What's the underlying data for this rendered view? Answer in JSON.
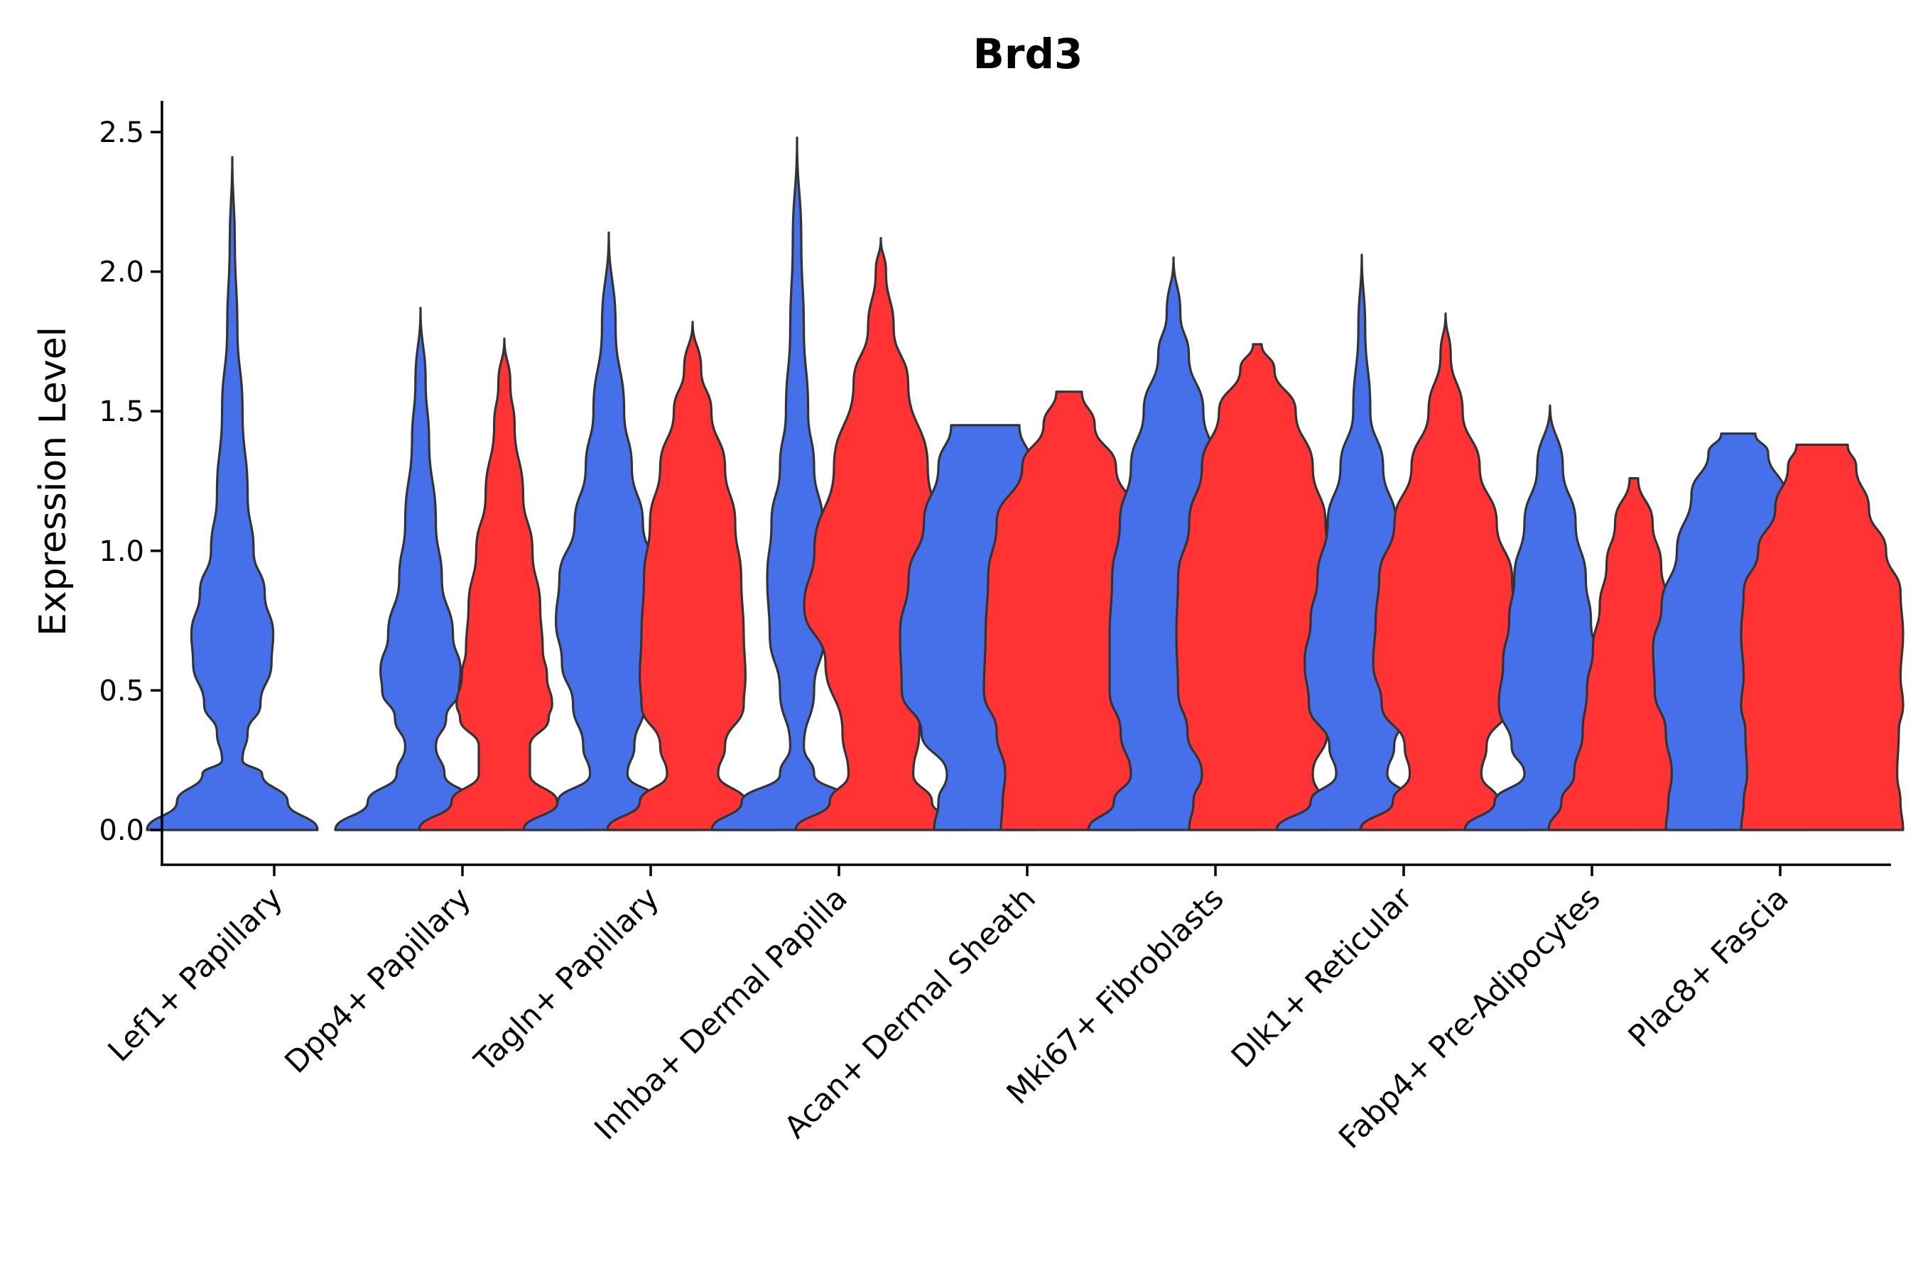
{
  "chart_data": {
    "type": "violin",
    "title": "Brd3",
    "xlabel": "",
    "ylabel": "Expression Level",
    "ylim": [
      -0.12,
      2.6
    ],
    "yticks": [
      0.0,
      0.5,
      1.0,
      1.5,
      2.0,
      2.5
    ],
    "ytick_labels": [
      "0.0",
      "0.5",
      "1.0",
      "1.5",
      "2.0",
      "2.5"
    ],
    "grid": false,
    "legend": "none",
    "colors": {
      "group_1": "#4670EA",
      "group_2": "#FF3333",
      "outline": "#333333"
    },
    "categories": [
      "Lef1+ Papillary",
      "Dpp4+ Papillary",
      "Tagln+ Papillary",
      "Inhba+ Dermal Papilla",
      "Acan+ Dermal Sheath",
      "Mki67+ Fibroblasts",
      "Dlk1+ Reticular",
      "Fabp4+ Pre-Adipocytes",
      "Plac8+ Fascia"
    ],
    "violins": [
      {
        "category": "Lef1+ Papillary",
        "group": "blue",
        "max": 2.41,
        "profile": [
          [
            0,
            1.0
          ],
          [
            0.1,
            0.65
          ],
          [
            0.2,
            0.35
          ],
          [
            0.25,
            0.12
          ],
          [
            0.35,
            0.18
          ],
          [
            0.45,
            0.33
          ],
          [
            0.6,
            0.46
          ],
          [
            0.7,
            0.48
          ],
          [
            0.85,
            0.38
          ],
          [
            1.0,
            0.25
          ],
          [
            1.2,
            0.18
          ],
          [
            1.5,
            0.12
          ],
          [
            1.8,
            0.06
          ],
          [
            2.1,
            0.03
          ],
          [
            2.41,
            0.0
          ]
        ]
      },
      {
        "category": "Dpp4+ Papillary",
        "group": "blue",
        "max": 1.87,
        "profile": [
          [
            0,
            1.0
          ],
          [
            0.1,
            0.62
          ],
          [
            0.2,
            0.28
          ],
          [
            0.3,
            0.18
          ],
          [
            0.4,
            0.3
          ],
          [
            0.5,
            0.45
          ],
          [
            0.57,
            0.47
          ],
          [
            0.7,
            0.38
          ],
          [
            0.9,
            0.25
          ],
          [
            1.1,
            0.18
          ],
          [
            1.4,
            0.1
          ],
          [
            1.6,
            0.06
          ],
          [
            1.87,
            0.0
          ]
        ]
      },
      {
        "category": "Dpp4+ Papillary",
        "group": "red",
        "max": 1.76,
        "profile": [
          [
            0,
            1.0
          ],
          [
            0.1,
            0.62
          ],
          [
            0.2,
            0.3
          ],
          [
            0.3,
            0.3
          ],
          [
            0.4,
            0.52
          ],
          [
            0.45,
            0.56
          ],
          [
            0.55,
            0.5
          ],
          [
            0.65,
            0.45
          ],
          [
            0.8,
            0.42
          ],
          [
            1.0,
            0.33
          ],
          [
            1.2,
            0.22
          ],
          [
            1.45,
            0.12
          ],
          [
            1.6,
            0.07
          ],
          [
            1.76,
            0.0
          ]
        ]
      },
      {
        "category": "Tagln+ Papillary",
        "group": "blue",
        "max": 2.14,
        "profile": [
          [
            0,
            1.0
          ],
          [
            0.1,
            0.6
          ],
          [
            0.2,
            0.22
          ],
          [
            0.3,
            0.3
          ],
          [
            0.45,
            0.42
          ],
          [
            0.6,
            0.55
          ],
          [
            0.75,
            0.62
          ],
          [
            0.9,
            0.58
          ],
          [
            1.1,
            0.4
          ],
          [
            1.3,
            0.27
          ],
          [
            1.5,
            0.18
          ],
          [
            1.8,
            0.08
          ],
          [
            2.14,
            0.0
          ]
        ]
      },
      {
        "category": "Tagln+ Papillary",
        "group": "red",
        "max": 1.82,
        "profile": [
          [
            0,
            1.0
          ],
          [
            0.1,
            0.62
          ],
          [
            0.2,
            0.3
          ],
          [
            0.3,
            0.38
          ],
          [
            0.45,
            0.6
          ],
          [
            0.55,
            0.62
          ],
          [
            0.7,
            0.6
          ],
          [
            0.9,
            0.57
          ],
          [
            1.1,
            0.5
          ],
          [
            1.3,
            0.38
          ],
          [
            1.5,
            0.22
          ],
          [
            1.65,
            0.1
          ],
          [
            1.82,
            0.0
          ]
        ]
      },
      {
        "category": "Inhba+ Dermal Papilla",
        "group": "blue",
        "max": 2.48,
        "profile": [
          [
            0,
            1.0
          ],
          [
            0.1,
            0.65
          ],
          [
            0.2,
            0.2
          ],
          [
            0.3,
            0.08
          ],
          [
            0.5,
            0.2
          ],
          [
            0.7,
            0.32
          ],
          [
            0.9,
            0.35
          ],
          [
            1.1,
            0.3
          ],
          [
            1.3,
            0.2
          ],
          [
            1.5,
            0.13
          ],
          [
            1.8,
            0.08
          ],
          [
            2.1,
            0.05
          ],
          [
            2.48,
            0.0
          ]
        ]
      },
      {
        "category": "Inhba+ Dermal Papilla",
        "group": "red",
        "max": 2.12,
        "profile": [
          [
            0,
            1.0
          ],
          [
            0.1,
            0.6
          ],
          [
            0.2,
            0.38
          ],
          [
            0.35,
            0.45
          ],
          [
            0.6,
            0.65
          ],
          [
            0.8,
            0.9
          ],
          [
            1.0,
            0.78
          ],
          [
            1.3,
            0.55
          ],
          [
            1.6,
            0.32
          ],
          [
            1.8,
            0.15
          ],
          [
            2.0,
            0.06
          ],
          [
            2.12,
            0.0
          ]
        ]
      },
      {
        "category": "Acan+ Dermal Sheath",
        "group": "blue",
        "max": 1.45,
        "profile": [
          [
            0,
            0.6
          ],
          [
            0.1,
            0.55
          ],
          [
            0.2,
            0.45
          ],
          [
            0.35,
            0.75
          ],
          [
            0.5,
            0.98
          ],
          [
            0.7,
            1.0
          ],
          [
            0.9,
            0.9
          ],
          [
            1.1,
            0.72
          ],
          [
            1.3,
            0.55
          ],
          [
            1.45,
            0.4
          ]
        ]
      },
      {
        "category": "Acan+ Dermal Sheath",
        "group": "red",
        "max": 1.57,
        "profile": [
          [
            0,
            0.8
          ],
          [
            0.1,
            0.78
          ],
          [
            0.2,
            0.75
          ],
          [
            0.35,
            0.85
          ],
          [
            0.5,
            1.0
          ],
          [
            0.7,
            0.98
          ],
          [
            0.9,
            0.95
          ],
          [
            1.1,
            0.85
          ],
          [
            1.3,
            0.55
          ],
          [
            1.45,
            0.3
          ],
          [
            1.57,
            0.15
          ]
        ]
      },
      {
        "category": "Mki67+ Fibroblasts",
        "group": "blue",
        "max": 2.05,
        "profile": [
          [
            0,
            1.0
          ],
          [
            0.1,
            0.7
          ],
          [
            0.2,
            0.5
          ],
          [
            0.35,
            0.62
          ],
          [
            0.5,
            0.75
          ],
          [
            0.7,
            0.75
          ],
          [
            0.9,
            0.72
          ],
          [
            1.1,
            0.63
          ],
          [
            1.3,
            0.5
          ],
          [
            1.5,
            0.35
          ],
          [
            1.7,
            0.18
          ],
          [
            1.85,
            0.08
          ],
          [
            2.05,
            0.0
          ]
        ]
      },
      {
        "category": "Mki67+ Fibroblasts",
        "group": "red",
        "max": 1.74,
        "profile": [
          [
            0,
            0.8
          ],
          [
            0.1,
            0.75
          ],
          [
            0.2,
            0.65
          ],
          [
            0.35,
            0.82
          ],
          [
            0.5,
            0.93
          ],
          [
            0.7,
            0.95
          ],
          [
            0.9,
            0.93
          ],
          [
            1.1,
            0.8
          ],
          [
            1.3,
            0.65
          ],
          [
            1.5,
            0.45
          ],
          [
            1.65,
            0.2
          ],
          [
            1.74,
            0.05
          ]
        ]
      },
      {
        "category": "Dlk1+ Reticular",
        "group": "blue",
        "max": 2.06,
        "profile": [
          [
            0,
            1.0
          ],
          [
            0.1,
            0.6
          ],
          [
            0.2,
            0.3
          ],
          [
            0.3,
            0.38
          ],
          [
            0.45,
            0.62
          ],
          [
            0.6,
            0.67
          ],
          [
            0.75,
            0.6
          ],
          [
            0.9,
            0.52
          ],
          [
            1.1,
            0.4
          ],
          [
            1.3,
            0.25
          ],
          [
            1.5,
            0.1
          ],
          [
            1.8,
            0.04
          ],
          [
            2.06,
            0.0
          ]
        ]
      },
      {
        "category": "Dlk1+ Reticular",
        "group": "red",
        "max": 1.85,
        "profile": [
          [
            0,
            1.0
          ],
          [
            0.1,
            0.62
          ],
          [
            0.2,
            0.42
          ],
          [
            0.3,
            0.48
          ],
          [
            0.45,
            0.75
          ],
          [
            0.6,
            0.85
          ],
          [
            0.75,
            0.82
          ],
          [
            0.9,
            0.78
          ],
          [
            1.1,
            0.6
          ],
          [
            1.3,
            0.4
          ],
          [
            1.5,
            0.2
          ],
          [
            1.7,
            0.06
          ],
          [
            1.85,
            0.0
          ]
        ]
      },
      {
        "category": "Fabp4+ Pre-Adipocytes",
        "group": "blue",
        "max": 1.52,
        "profile": [
          [
            0,
            1.0
          ],
          [
            0.1,
            0.65
          ],
          [
            0.2,
            0.3
          ],
          [
            0.3,
            0.45
          ],
          [
            0.45,
            0.6
          ],
          [
            0.6,
            0.55
          ],
          [
            0.75,
            0.48
          ],
          [
            0.9,
            0.42
          ],
          [
            1.1,
            0.3
          ],
          [
            1.3,
            0.15
          ],
          [
            1.52,
            0.0
          ]
        ]
      },
      {
        "category": "Fabp4+ Pre-Adipocytes",
        "group": "red",
        "max": 1.26,
        "profile": [
          [
            0,
            1.0
          ],
          [
            0.1,
            0.85
          ],
          [
            0.2,
            0.7
          ],
          [
            0.35,
            0.6
          ],
          [
            0.5,
            0.55
          ],
          [
            0.65,
            0.48
          ],
          [
            0.8,
            0.4
          ],
          [
            0.95,
            0.32
          ],
          [
            1.1,
            0.22
          ],
          [
            1.26,
            0.05
          ]
        ]
      },
      {
        "category": "Plac8+ Fascia",
        "group": "blue",
        "max": 1.42,
        "profile": [
          [
            0,
            0.85
          ],
          [
            0.1,
            0.82
          ],
          [
            0.2,
            0.78
          ],
          [
            0.35,
            0.85
          ],
          [
            0.5,
            0.98
          ],
          [
            0.65,
            1.0
          ],
          [
            0.8,
            0.9
          ],
          [
            1.0,
            0.72
          ],
          [
            1.2,
            0.55
          ],
          [
            1.35,
            0.35
          ],
          [
            1.42,
            0.2
          ]
        ]
      },
      {
        "category": "Plac8+ Fascia",
        "group": "red",
        "max": 1.38,
        "profile": [
          [
            0,
            0.95
          ],
          [
            0.1,
            0.92
          ],
          [
            0.2,
            0.88
          ],
          [
            0.35,
            0.9
          ],
          [
            0.45,
            0.95
          ],
          [
            0.55,
            0.92
          ],
          [
            0.7,
            0.95
          ],
          [
            0.85,
            0.92
          ],
          [
            1.0,
            0.75
          ],
          [
            1.15,
            0.55
          ],
          [
            1.3,
            0.4
          ],
          [
            1.38,
            0.3
          ]
        ]
      }
    ]
  }
}
